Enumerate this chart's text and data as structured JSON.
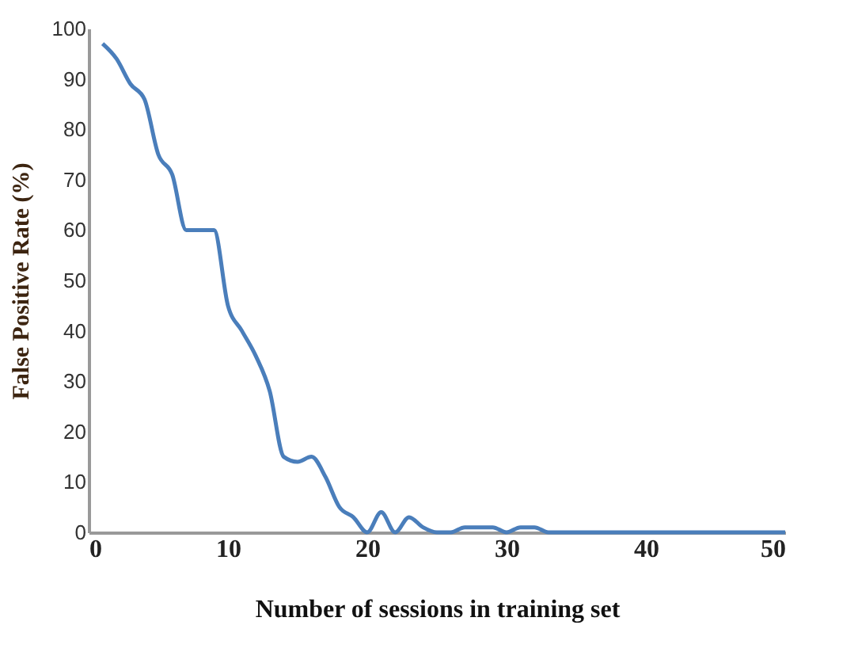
{
  "chart_data": {
    "type": "line",
    "xlabel": "Number of sessions in training set",
    "ylabel": "False Positive Rate (%)",
    "x": [
      1,
      2,
      3,
      4,
      5,
      6,
      7,
      8,
      9,
      10,
      11,
      12,
      13,
      14,
      15,
      16,
      17,
      18,
      19,
      20,
      21,
      22,
      23,
      24,
      25,
      26,
      27,
      28,
      29,
      30,
      31,
      32,
      33,
      34,
      35,
      36,
      37,
      38,
      39,
      40,
      41,
      42,
      43,
      44,
      45,
      46,
      47,
      48,
      49,
      50
    ],
    "series": [
      {
        "color": "#4a7ebb",
        "values": [
          97,
          94,
          89,
          86,
          75,
          71,
          60,
          60,
          60,
          45,
          40,
          35,
          28,
          15,
          14,
          15,
          11,
          5,
          3,
          0,
          4,
          0,
          3,
          1,
          0,
          0,
          1,
          1,
          1,
          0,
          1,
          1,
          0,
          0,
          0,
          0,
          0,
          0,
          0,
          0,
          0,
          0,
          0,
          0,
          0,
          0,
          0,
          0,
          0,
          0
        ]
      }
    ],
    "xlim": [
      0,
      50
    ],
    "xticks": [
      0,
      10,
      20,
      30,
      40,
      50
    ],
    "ylim": [
      0,
      100
    ],
    "yticks": [
      0,
      10,
      20,
      30,
      40,
      50,
      60,
      70,
      80,
      90,
      100
    ],
    "grid": false,
    "marker": "none",
    "line_style": "solid"
  }
}
